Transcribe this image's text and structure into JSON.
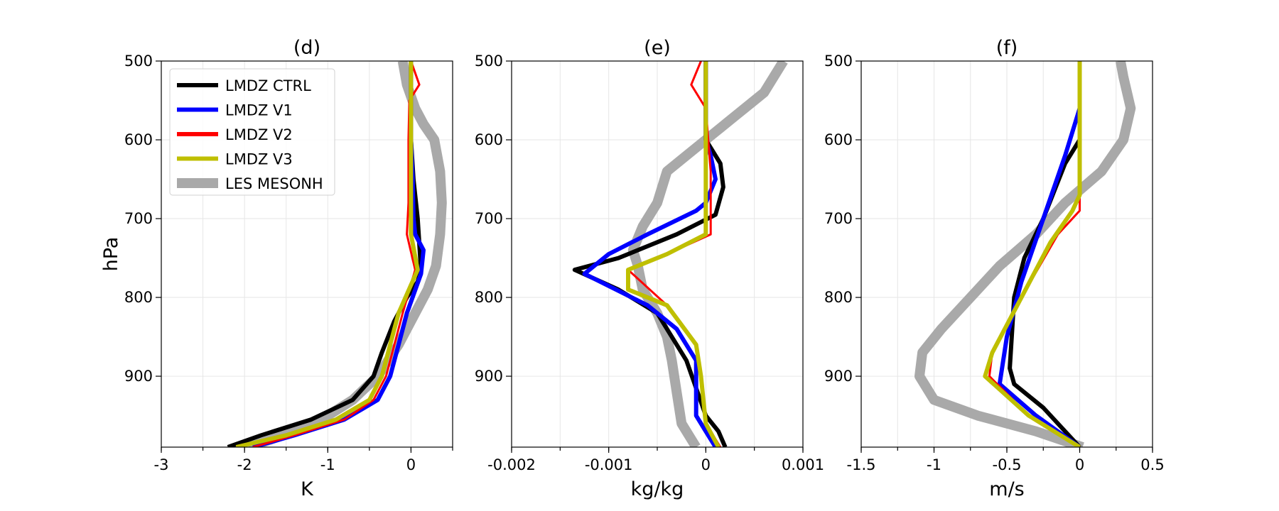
{
  "chart_data": [
    {
      "type": "line",
      "title": "(d)",
      "xlabel": "K",
      "ylabel": "hPa",
      "xlim": [
        -3,
        0.5
      ],
      "ylim": [
        990,
        500
      ],
      "xticks": [
        -3,
        -2,
        -1,
        0
      ],
      "xtick_labels": [
        "-3",
        "-2",
        "-1",
        "0"
      ],
      "yticks": [
        500,
        600,
        700,
        800,
        900
      ],
      "ytick_labels": [
        "500",
        "600",
        "700",
        "800",
        "900"
      ],
      "grid": true,
      "legend": {
        "placement": "top-left",
        "entries": [
          {
            "label": "LMDZ CTRL",
            "color": "#000000",
            "width": 6
          },
          {
            "label": "LMDZ V1",
            "color": "#0000ff",
            "width": 6
          },
          {
            "label": "LMDZ V2",
            "color": "#ff0000",
            "width": 6
          },
          {
            "label": "LMDZ V3",
            "color": "#bfbf00",
            "width": 6
          },
          {
            "label": "LES MESONH",
            "color": "#a9a9a9",
            "width": 14
          }
        ]
      },
      "series": [
        {
          "name": "LES MESONH",
          "color": "#a9a9a9",
          "width": 14,
          "x": [
            -1.95,
            -1.4,
            -1.0,
            -0.7,
            -0.4,
            -0.15,
            0.05,
            0.2,
            0.3,
            0.35,
            0.37,
            0.35,
            0.28,
            0.15,
            0.05,
            -0.05,
            -0.1
          ],
          "y": [
            990,
            970,
            950,
            930,
            900,
            860,
            820,
            790,
            760,
            720,
            680,
            640,
            600,
            580,
            560,
            530,
            500
          ]
        },
        {
          "name": "LMDZ CTRL",
          "color": "#000000",
          "width": 6,
          "x": [
            -2.2,
            -1.8,
            -1.2,
            -0.7,
            -0.45,
            -0.35,
            -0.2,
            -0.05,
            0.08,
            0.12,
            0.08,
            0.03,
            0.0,
            0.0
          ],
          "y": [
            990,
            975,
            955,
            930,
            900,
            870,
            830,
            800,
            780,
            765,
            700,
            650,
            600,
            500
          ]
        },
        {
          "name": "LMDZ V1",
          "color": "#0000ff",
          "width": 6,
          "x": [
            -1.9,
            -1.4,
            -0.8,
            -0.4,
            -0.25,
            -0.15,
            -0.05,
            0.12,
            0.15,
            0.05,
            0.03,
            0.02,
            0.0,
            0.0
          ],
          "y": [
            990,
            975,
            955,
            930,
            900,
            860,
            820,
            770,
            740,
            720,
            700,
            650,
            600,
            500
          ]
        },
        {
          "name": "LMDZ V2",
          "color": "#ff0000",
          "width": 3,
          "x": [
            -1.9,
            -1.4,
            -0.8,
            -0.45,
            -0.3,
            -0.2,
            -0.1,
            0.05,
            -0.05,
            -0.03,
            -0.03,
            -0.02,
            0.1,
            0.0
          ],
          "y": [
            990,
            975,
            955,
            930,
            900,
            860,
            820,
            765,
            720,
            680,
            600,
            550,
            530,
            500
          ]
        },
        {
          "name": "LMDZ V3",
          "color": "#bfbf00",
          "width": 6,
          "x": [
            -2.1,
            -1.5,
            -0.9,
            -0.5,
            -0.35,
            -0.25,
            -0.15,
            0.08,
            0.0,
            0.0,
            0.0,
            0.0
          ],
          "y": [
            990,
            975,
            955,
            930,
            900,
            860,
            820,
            765,
            720,
            650,
            600,
            500
          ]
        }
      ]
    },
    {
      "type": "line",
      "title": "(e)",
      "xlabel": "kg/kg",
      "ylabel": "",
      "xlim": [
        -0.002,
        0.001
      ],
      "ylim": [
        990,
        500
      ],
      "xticks": [
        -0.002,
        -0.001,
        0,
        0.001
      ],
      "xtick_labels": [
        "-0.002",
        "-0.001",
        "0",
        "0.001"
      ],
      "yticks": [
        500,
        600,
        700,
        800,
        900
      ],
      "ytick_labels": [
        "500",
        "600",
        "700",
        "800",
        "900"
      ],
      "grid": true,
      "series": [
        {
          "name": "LES MESONH",
          "color": "#a9a9a9",
          "width": 14,
          "x": [
            -0.0001,
            -0.00025,
            -0.0003,
            -0.00035,
            -0.0004,
            -0.0005,
            -0.00065,
            -0.0007,
            -0.00075,
            -0.00065,
            -0.0005,
            -0.0004,
            -0.0002,
            0.0,
            0.0003,
            0.0005,
            0.0006,
            0.0007,
            0.0008
          ],
          "y": [
            990,
            960,
            920,
            880,
            850,
            820,
            790,
            760,
            740,
            710,
            680,
            640,
            620,
            600,
            570,
            550,
            540,
            520,
            500
          ]
        },
        {
          "name": "LMDZ CTRL",
          "color": "#000000",
          "width": 6,
          "x": [
            0.0002,
            0.00013,
            0.0,
            -0.0002,
            -0.0005,
            -0.0009,
            -0.00135,
            -0.0009,
            -0.0006,
            -0.0003,
            0.0001,
            0.00018,
            0.00015,
            0.0,
            0.0
          ],
          "y": [
            990,
            970,
            950,
            880,
            820,
            790,
            765,
            750,
            735,
            720,
            695,
            660,
            630,
            600,
            500
          ]
        },
        {
          "name": "LMDZ V1",
          "color": "#0000ff",
          "width": 6,
          "x": [
            0.0001,
            0.0,
            -0.0001,
            -0.0001,
            -0.0003,
            -0.0006,
            -0.00125,
            -0.001,
            -0.0006,
            -0.0001,
            0.0,
            0.0001,
            5e-05,
            0.0,
            0.0
          ],
          "y": [
            990,
            970,
            950,
            880,
            840,
            810,
            770,
            745,
            720,
            690,
            680,
            650,
            620,
            600,
            500
          ]
        },
        {
          "name": "LMDZ V2",
          "color": "#ff0000",
          "width": 3,
          "x": [
            0.00015,
            0.0,
            -5e-05,
            -0.0001,
            -0.0004,
            -0.0008,
            -0.0004,
            5e-05,
            5e-05,
            0.0,
            -0.00015,
            -5e-05
          ],
          "y": [
            990,
            960,
            900,
            860,
            810,
            765,
            745,
            720,
            640,
            560,
            530,
            500
          ]
        },
        {
          "name": "LMDZ V3",
          "color": "#bfbf00",
          "width": 6,
          "x": [
            0.00013,
            0.0,
            -5e-05,
            -0.0001,
            -0.0004,
            -0.0008,
            -0.0008,
            -0.0004,
            0.0,
            0.0,
            0.0
          ],
          "y": [
            990,
            960,
            900,
            860,
            810,
            790,
            765,
            745,
            720,
            600,
            500
          ]
        }
      ]
    },
    {
      "type": "line",
      "title": "(f)",
      "xlabel": "m/s",
      "ylabel": "",
      "xlim": [
        -1.5,
        0.5
      ],
      "ylim": [
        990,
        500
      ],
      "xticks": [
        -1.5,
        -1,
        -0.5,
        0,
        0.5
      ],
      "xtick_labels": [
        "-1.5",
        "-1",
        "-0.5",
        "0",
        "0.5"
      ],
      "yticks": [
        500,
        600,
        700,
        800,
        900
      ],
      "ytick_labels": [
        "500",
        "600",
        "700",
        "800",
        "900"
      ],
      "grid": true,
      "series": [
        {
          "name": "LES MESONH",
          "color": "#a9a9a9",
          "width": 14,
          "x": [
            0.02,
            -0.3,
            -0.7,
            -1.0,
            -1.1,
            -1.08,
            -0.95,
            -0.75,
            -0.55,
            -0.3,
            -0.1,
            0.15,
            0.3,
            0.35,
            0.3,
            0.28
          ],
          "y": [
            990,
            970,
            950,
            930,
            900,
            870,
            840,
            800,
            760,
            720,
            680,
            640,
            600,
            560,
            520,
            500
          ]
        },
        {
          "name": "LMDZ CTRL",
          "color": "#000000",
          "width": 6,
          "x": [
            0.0,
            -0.25,
            -0.45,
            -0.48,
            -0.45,
            -0.38,
            -0.25,
            -0.1,
            0.0,
            0.0
          ],
          "y": [
            990,
            940,
            910,
            890,
            800,
            750,
            700,
            630,
            600,
            500
          ]
        },
        {
          "name": "LMDZ V1",
          "color": "#0000ff",
          "width": 6,
          "x": [
            0.0,
            -0.3,
            -0.55,
            -0.5,
            -0.4,
            -0.25,
            -0.1,
            0.0
          ],
          "y": [
            990,
            950,
            910,
            850,
            780,
            700,
            620,
            560
          ]
        },
        {
          "name": "LMDZ V2",
          "color": "#ff0000",
          "width": 3,
          "x": [
            0.0,
            -0.35,
            -0.62,
            -0.6,
            -0.4,
            -0.15,
            0.0,
            0.0,
            0.0
          ],
          "y": [
            990,
            950,
            900,
            870,
            800,
            720,
            690,
            660,
            500
          ]
        },
        {
          "name": "LMDZ V3",
          "color": "#bfbf00",
          "width": 6,
          "x": [
            0.0,
            -0.35,
            -0.65,
            -0.6,
            -0.4,
            -0.2,
            -0.05,
            0.0,
            0.0,
            0.0
          ],
          "y": [
            990,
            950,
            900,
            870,
            800,
            730,
            690,
            670,
            640,
            500
          ]
        }
      ]
    }
  ]
}
